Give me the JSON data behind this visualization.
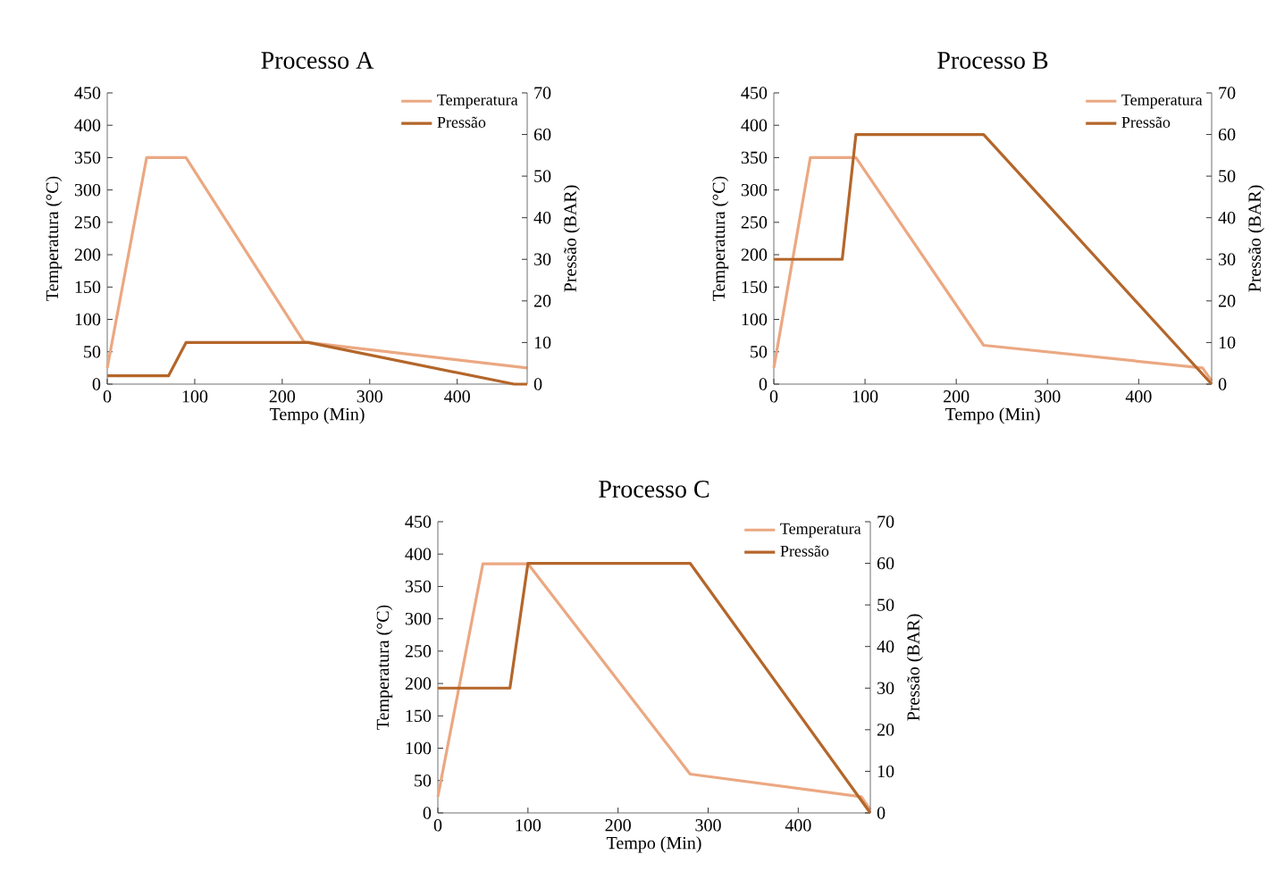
{
  "chart_data": [
    {
      "type": "line",
      "title": "Processo A",
      "xlabel": "Tempo (Min)",
      "ylabel": "Temperatura (°C)",
      "y2label": "Pressão (BAR)",
      "xlim": [
        0,
        480
      ],
      "xticks": [
        0,
        100,
        200,
        300,
        400
      ],
      "ylim": [
        0,
        450
      ],
      "yticks": [
        0,
        50,
        100,
        150,
        200,
        250,
        300,
        350,
        400,
        450
      ],
      "y2lim": [
        0,
        70
      ],
      "y2ticks": [
        0,
        10,
        20,
        30,
        40,
        50,
        60,
        70
      ],
      "legend": "top right",
      "series": [
        {
          "name": "Temperatura",
          "color": "#eba882",
          "x": [
            0,
            45,
            90,
            225,
            480
          ],
          "values": [
            25,
            350,
            350,
            65,
            25
          ]
        },
        {
          "name": "Pressão",
          "color": "#b4662a",
          "axis": "y2",
          "x": [
            0,
            70,
            90,
            230,
            465,
            480
          ],
          "values": [
            2,
            2,
            10,
            10,
            0,
            0
          ]
        }
      ]
    },
    {
      "type": "line",
      "title": "Processo B",
      "xlabel": "Tempo (Min)",
      "ylabel": "Temperatura (°C)",
      "y2label": "Pressão (BAR)",
      "xlim": [
        0,
        480
      ],
      "xticks": [
        0,
        100,
        200,
        300,
        400
      ],
      "ylim": [
        0,
        450
      ],
      "yticks": [
        0,
        50,
        100,
        150,
        200,
        250,
        300,
        350,
        400,
        450
      ],
      "y2lim": [
        0,
        70
      ],
      "y2ticks": [
        0,
        10,
        20,
        30,
        40,
        50,
        60,
        70
      ],
      "legend": "top right",
      "series": [
        {
          "name": "Temperatura",
          "color": "#eba882",
          "x": [
            0,
            40,
            90,
            230,
            470,
            480
          ],
          "values": [
            25,
            350,
            350,
            60,
            25,
            5
          ]
        },
        {
          "name": "Pressão",
          "color": "#b4662a",
          "axis": "y2",
          "x": [
            0,
            75,
            90,
            230,
            480
          ],
          "values": [
            30,
            30,
            60,
            60,
            0
          ]
        }
      ]
    },
    {
      "type": "line",
      "title": "Processo C",
      "xlabel": "Tempo (Min)",
      "ylabel": "Temperatura (°C)",
      "y2label": "Pressão (BAR)",
      "xlim": [
        0,
        480
      ],
      "xticks": [
        0,
        100,
        200,
        300,
        400
      ],
      "ylim": [
        0,
        450
      ],
      "yticks": [
        0,
        50,
        100,
        150,
        200,
        250,
        300,
        350,
        400,
        450
      ],
      "y2lim": [
        0,
        70
      ],
      "y2ticks": [
        0,
        10,
        20,
        30,
        40,
        50,
        60,
        70
      ],
      "legend": "top right",
      "series": [
        {
          "name": "Temperatura",
          "color": "#eba882",
          "x": [
            0,
            50,
            100,
            280,
            470,
            480
          ],
          "values": [
            25,
            385,
            385,
            60,
            25,
            5
          ]
        },
        {
          "name": "Pressão",
          "color": "#b4662a",
          "axis": "y2",
          "x": [
            0,
            80,
            100,
            280,
            480
          ],
          "values": [
            30,
            30,
            60,
            60,
            0
          ]
        }
      ]
    }
  ]
}
